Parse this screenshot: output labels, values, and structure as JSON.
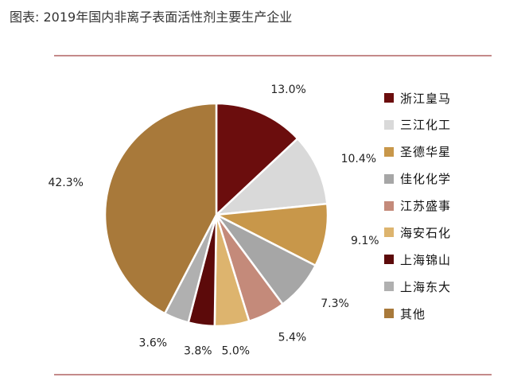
{
  "title": "图表: 2019年国内非离子表面活性剂主要生产企业",
  "chart_data": {
    "type": "pie",
    "slices": [
      {
        "label": "浙江皇马",
        "value": 13.0,
        "display": "13.0%",
        "color": "#6b0d0d"
      },
      {
        "label": "三江化工",
        "value": 10.4,
        "display": "10.4%",
        "color": "#d9d9d9"
      },
      {
        "label": "圣德华星",
        "value": 9.1,
        "display": "9.1%",
        "color": "#c8974a"
      },
      {
        "label": "佳化化学",
        "value": 7.3,
        "display": "7.3%",
        "color": "#a6a6a6"
      },
      {
        "label": "江苏盛事",
        "value": 5.4,
        "display": "5.4%",
        "color": "#c48a7a"
      },
      {
        "label": "海安石化",
        "value": 5.0,
        "display": "5.0%",
        "color": "#ddb46e"
      },
      {
        "label": "上海锦山",
        "value": 3.8,
        "display": "3.8%",
        "color": "#5c0a0a"
      },
      {
        "label": "上海东大",
        "value": 3.6,
        "display": "3.6%",
        "color": "#b0b0b0"
      },
      {
        "label": "其他",
        "value": 42.3,
        "display": "42.3%",
        "color": "#a8793a"
      }
    ],
    "start_angle": "12 o'clock",
    "direction": "clockwise",
    "legend_position": "right"
  }
}
